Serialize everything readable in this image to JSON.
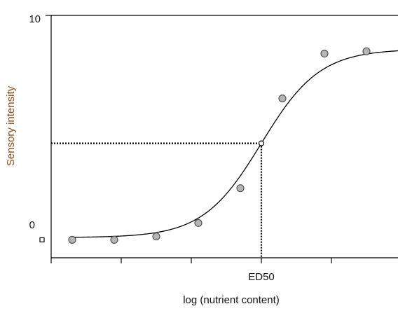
{
  "chart_data": {
    "type": "scatter",
    "title": "",
    "xlabel": "log (nutrient content)",
    "ylabel": "Sensory intensity",
    "xlim": [
      0,
      5
    ],
    "ylim": [
      -0.8,
      10
    ],
    "x_tick_positions": [
      0,
      1,
      2,
      3,
      4,
      5
    ],
    "x_tick_labels": [
      "",
      "",
      "",
      "ED50",
      "",
      ""
    ],
    "y_tick_labels": [
      {
        "value": 10,
        "label": "10"
      },
      {
        "value": 0,
        "label": "0"
      }
    ],
    "series": [
      {
        "x": [
          0.3,
          0.9,
          1.5,
          2.1,
          2.7,
          3.3,
          3.9,
          4.5
        ],
        "y": [
          0.0,
          0.0,
          0.15,
          0.75,
          2.3,
          6.3,
          8.3,
          8.4
        ]
      }
    ],
    "fit_curve": {
      "type": "logistic",
      "bottom": 0.1,
      "top": 8.5,
      "ed50": 3.0,
      "slope": 2.4
    },
    "reference_point": {
      "x": 3.0,
      "y": 4.3,
      "label": "ED50"
    },
    "grid": false,
    "legend": "none",
    "colors": {
      "axis": "#000000",
      "point_fill": "#b5b5b5",
      "point_stroke": "#555555",
      "curve": "#000000",
      "dotted": "#000000",
      "ylabel": "#8a4a16"
    }
  }
}
